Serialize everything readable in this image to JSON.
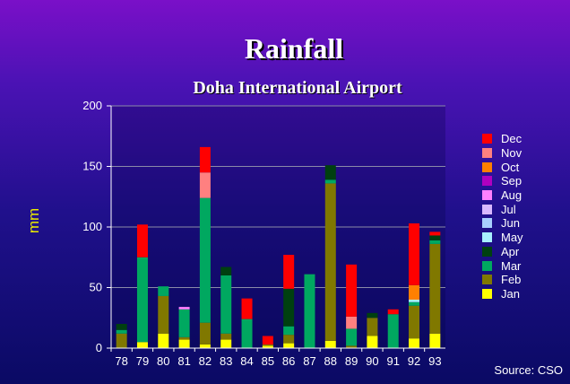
{
  "chart_data": {
    "type": "bar",
    "stacked": true,
    "title": "Rainfall",
    "subtitle": "Doha International Airport",
    "xlabel": "",
    "ylabel": "mm",
    "ylim": [
      0,
      200
    ],
    "yticks": [
      0,
      50,
      100,
      150,
      200
    ],
    "grid": true,
    "legend_position": "right",
    "source": "Source: CSO",
    "categories": [
      "78",
      "79",
      "80",
      "81",
      "82",
      "83",
      "84",
      "85",
      "86",
      "87",
      "88",
      "89",
      "90",
      "91",
      "92",
      "93"
    ],
    "series": [
      {
        "name": "Jan",
        "color": "#ffff00",
        "values": [
          0,
          5,
          12,
          7,
          3,
          7,
          0,
          2,
          4,
          0,
          6,
          0,
          10,
          0,
          8,
          12
        ]
      },
      {
        "name": "Feb",
        "color": "#807800",
        "values": [
          12,
          0,
          31,
          2,
          18,
          5,
          0,
          1,
          7,
          0,
          130,
          2,
          15,
          0,
          27,
          74
        ]
      },
      {
        "name": "Mar",
        "color": "#00a860",
        "values": [
          3,
          70,
          8,
          23,
          103,
          48,
          24,
          0,
          7,
          61,
          3,
          14,
          0,
          28,
          3,
          3
        ]
      },
      {
        "name": "Apr",
        "color": "#004010",
        "values": [
          5,
          0,
          0,
          0,
          0,
          7,
          0,
          0,
          31,
          0,
          12,
          0,
          4,
          0,
          0,
          4
        ]
      },
      {
        "name": "May",
        "color": "#a8f0ff",
        "values": [
          0,
          0,
          0,
          0,
          0,
          0,
          0,
          0,
          0,
          0,
          0,
          0,
          0,
          0,
          2,
          0
        ]
      },
      {
        "name": "Jun",
        "color": "#a8d0ff",
        "values": [
          0,
          0,
          0,
          0,
          0,
          0,
          0,
          0,
          0,
          0,
          0,
          0,
          0,
          0,
          0,
          0
        ]
      },
      {
        "name": "Jul",
        "color": "#d8b8ff",
        "values": [
          0,
          0,
          0,
          0,
          0,
          0,
          0,
          0,
          0,
          0,
          0,
          0,
          0,
          0,
          0,
          0
        ]
      },
      {
        "name": "Aug",
        "color": "#ff80ff",
        "values": [
          0,
          0,
          0,
          2,
          0,
          0,
          0,
          0,
          0,
          0,
          0,
          0,
          0,
          0,
          0,
          0
        ]
      },
      {
        "name": "Sep",
        "color": "#b000c0",
        "values": [
          0,
          0,
          0,
          0,
          0,
          0,
          0,
          0,
          0,
          0,
          0,
          0,
          0,
          0,
          0,
          0
        ]
      },
      {
        "name": "Oct",
        "color": "#ff8000",
        "values": [
          0,
          0,
          0,
          0,
          0,
          0,
          0,
          0,
          0,
          0,
          0,
          0,
          0,
          0,
          12,
          0
        ]
      },
      {
        "name": "Nov",
        "color": "#ff8080",
        "values": [
          0,
          0,
          0,
          0,
          21,
          0,
          0,
          0,
          0,
          0,
          0,
          10,
          0,
          0,
          0,
          0
        ]
      },
      {
        "name": "Dec",
        "color": "#ff0000",
        "values": [
          0,
          27,
          0,
          0,
          21,
          0,
          17,
          7,
          28,
          0,
          0,
          43,
          0,
          4,
          51,
          3
        ]
      }
    ]
  }
}
